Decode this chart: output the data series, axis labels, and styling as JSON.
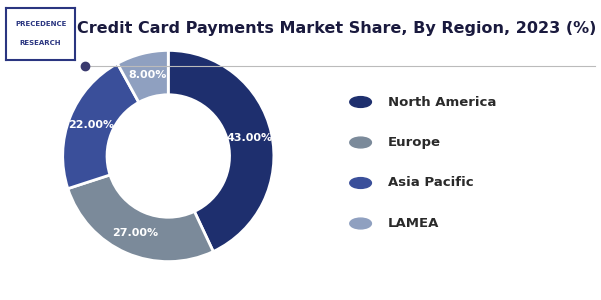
{
  "title": "Credit Card Payments Market Share, By Region, 2023 (%)",
  "labels": [
    "North America",
    "Europe",
    "Asia Pacific",
    "LAMEA"
  ],
  "values": [
    43,
    27,
    22,
    8
  ],
  "pct_labels": [
    "43.00%",
    "27.00%",
    "22.00%",
    "8.00%"
  ],
  "colors": [
    "#1e2f6e",
    "#7b8a9a",
    "#3a4f9a",
    "#8fa0c0"
  ],
  "background_color": "#ffffff",
  "title_fontsize": 11.5,
  "legend_fontsize": 9.5,
  "startangle": 90
}
